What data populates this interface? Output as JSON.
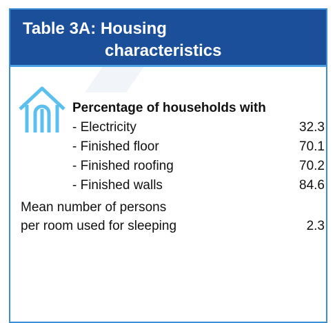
{
  "header": {
    "title_lines": [
      "Table 3A: Housing",
      "characteristics"
    ]
  },
  "section": {
    "heading": "Percentage of households with",
    "rows": [
      {
        "label": "- Electricity",
        "value": 32.3
      },
      {
        "label": "- Finished floor",
        "value": 70.1
      },
      {
        "label": "- Finished roofing",
        "value": 70.2
      },
      {
        "label": "- Finished walls",
        "value": 84.6
      }
    ]
  },
  "mean": {
    "label_lines": [
      "Mean number of persons",
      "per room used for sleeping"
    ],
    "value": 2.3
  }
}
